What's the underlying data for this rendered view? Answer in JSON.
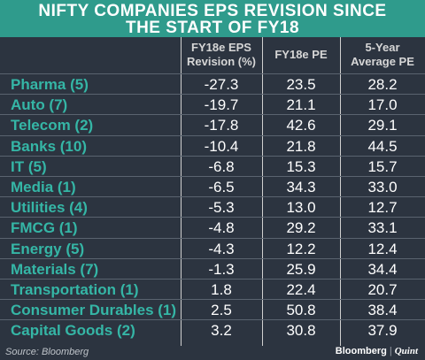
{
  "title_line1": "NIFTY COMPANIES EPS REVISION SINCE",
  "title_line2": "THE START OF FY18",
  "headers": {
    "col1_line1": "FY18e EPS",
    "col1_line2": "Revision (%)",
    "col2": "FY18e PE",
    "col3_line1": "5-Year",
    "col3_line2": "Average PE"
  },
  "source": "Source: Bloomberg",
  "brand": {
    "left": "Bloomberg",
    "sep": "|",
    "right": "Quint"
  },
  "colors": {
    "title_bg": "#2f9b8c",
    "bg": "#2c3440",
    "label": "#35b6a6",
    "value": "#ffffff"
  },
  "chart_data": {
    "type": "table",
    "title": "NIFTY COMPANIES EPS REVISION SINCE THE START OF FY18",
    "columns": [
      "FY18e EPS Revision (%)",
      "FY18e PE",
      "5-Year Average PE"
    ],
    "rows": [
      {
        "sector": "Pharma (5)",
        "values": [
          "-27.3",
          "23.5",
          "28.2"
        ]
      },
      {
        "sector": "Auto (7)",
        "values": [
          "-19.7",
          "21.1",
          "17.0"
        ]
      },
      {
        "sector": "Telecom (2)",
        "values": [
          "-17.8",
          "42.6",
          "29.1"
        ]
      },
      {
        "sector": "Banks (10)",
        "values": [
          "-10.4",
          "21.8",
          "44.5"
        ]
      },
      {
        "sector": "IT (5)",
        "values": [
          "-6.8",
          "15.3",
          "15.7"
        ]
      },
      {
        "sector": "Media (1)",
        "values": [
          "-6.5",
          "34.3",
          "33.0"
        ]
      },
      {
        "sector": "Utilities (4)",
        "values": [
          "-5.3",
          "13.0",
          "12.7"
        ]
      },
      {
        "sector": "FMCG (1)",
        "values": [
          "-4.8",
          "29.2",
          "33.1"
        ]
      },
      {
        "sector": "Energy (5)",
        "values": [
          "-4.3",
          "12.2",
          "12.4"
        ]
      },
      {
        "sector": "Materials (7)",
        "values": [
          "-1.3",
          "25.9",
          "34.4"
        ]
      },
      {
        "sector": "Transportation (1)",
        "values": [
          "1.8",
          "22.4",
          "20.7"
        ]
      },
      {
        "sector": "Consumer Durables (1)",
        "values": [
          "2.5",
          "50.8",
          "38.4"
        ]
      },
      {
        "sector": "Capital Goods (2)",
        "values": [
          "3.2",
          "30.8",
          "37.9"
        ]
      }
    ]
  }
}
